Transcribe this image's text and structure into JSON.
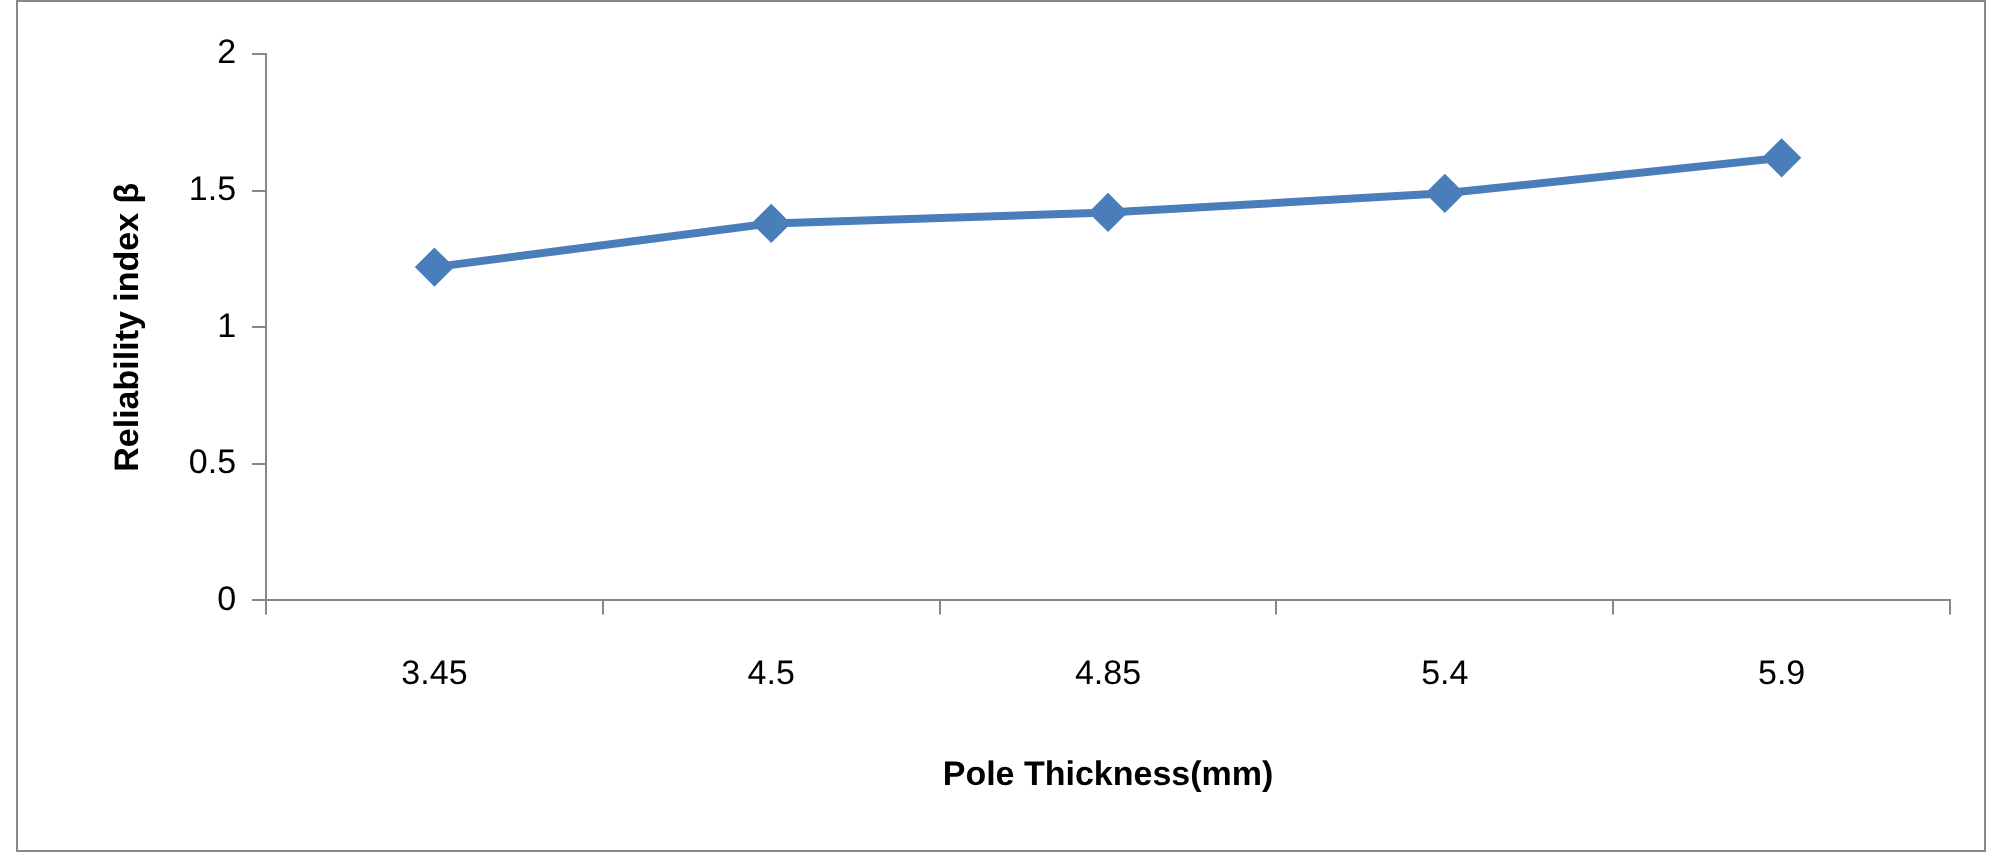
{
  "chart_data": {
    "type": "line",
    "xlabel": "Pole Thickness(mm)",
    "ylabel": "Reliability index β",
    "categories": [
      "3.45",
      "4.5",
      "4.85",
      "5.4",
      "5.9"
    ],
    "series": [
      {
        "color": "#4a7ebb",
        "values": [
          1.22,
          1.38,
          1.42,
          1.49,
          1.62
        ]
      }
    ],
    "ylim": [
      0,
      2
    ],
    "yticks": [
      0,
      0.5,
      1,
      1.5,
      2
    ],
    "grid": false,
    "legend": false,
    "marker": "diamond",
    "line_style": "solid"
  }
}
